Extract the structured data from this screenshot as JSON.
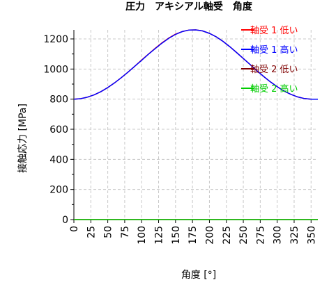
{
  "chart_data": {
    "type": "line",
    "title": "圧力　アキシアル軸受　角度",
    "xlabel": "角度 [°]",
    "ylabel": "接触応力 [MPa]",
    "xlim": [
      0,
      360
    ],
    "ylim": [
      0,
      1260
    ],
    "x_ticks": [
      0,
      25,
      50,
      75,
      100,
      125,
      150,
      175,
      200,
      225,
      250,
      275,
      300,
      325,
      350
    ],
    "y_ticks": [
      0,
      200,
      400,
      600,
      800,
      1000,
      1200
    ],
    "grid": true,
    "legend_position": "top-right",
    "x": [
      0,
      10,
      20,
      30,
      40,
      50,
      60,
      70,
      80,
      90,
      100,
      110,
      120,
      130,
      140,
      150,
      160,
      170,
      180,
      190,
      200,
      210,
      220,
      230,
      240,
      250,
      260,
      270,
      280,
      290,
      300,
      310,
      320,
      330,
      340,
      350,
      360
    ],
    "series": [
      {
        "name": "一軸受 1 低い",
        "color": "#ff0000",
        "values": [
          800,
          803,
          813,
          829,
          850,
          877,
          908,
          943,
          980,
          1019,
          1060,
          1099,
          1138,
          1174,
          1206,
          1232,
          1249,
          1259,
          1260,
          1253,
          1237,
          1214,
          1184,
          1149,
          1110,
          1070,
          1030,
          989,
          951,
          915,
          883,
          854,
          832,
          815,
          804,
          800,
          800
        ]
      },
      {
        "name": "一軸受 1 高い",
        "color": "#0000ff",
        "values": [
          800,
          803,
          813,
          829,
          850,
          877,
          908,
          943,
          980,
          1019,
          1058,
          1098,
          1136,
          1172,
          1204,
          1230,
          1249,
          1259,
          1260,
          1253,
          1237,
          1214,
          1184,
          1149,
          1110,
          1070,
          1030,
          989,
          951,
          915,
          883,
          854,
          832,
          815,
          804,
          800,
          800
        ]
      },
      {
        "name": "一軸受 2 低い",
        "color": "#800000",
        "values": [
          0,
          0,
          0,
          0,
          0,
          0,
          0,
          0,
          0,
          0,
          0,
          0,
          0,
          0,
          0,
          0,
          0,
          0,
          0,
          0,
          0,
          0,
          0,
          0,
          0,
          0,
          0,
          0,
          0,
          0,
          0,
          0,
          0,
          0,
          0,
          0,
          0
        ]
      },
      {
        "name": "一軸受 2 高い",
        "color": "#00cc00",
        "values": [
          0,
          0,
          0,
          0,
          0,
          0,
          0,
          0,
          0,
          0,
          0,
          0,
          0,
          0,
          0,
          0,
          0,
          0,
          0,
          0,
          0,
          0,
          0,
          0,
          0,
          0,
          0,
          0,
          0,
          0,
          0,
          0,
          0,
          0,
          0,
          0,
          0
        ]
      }
    ]
  }
}
